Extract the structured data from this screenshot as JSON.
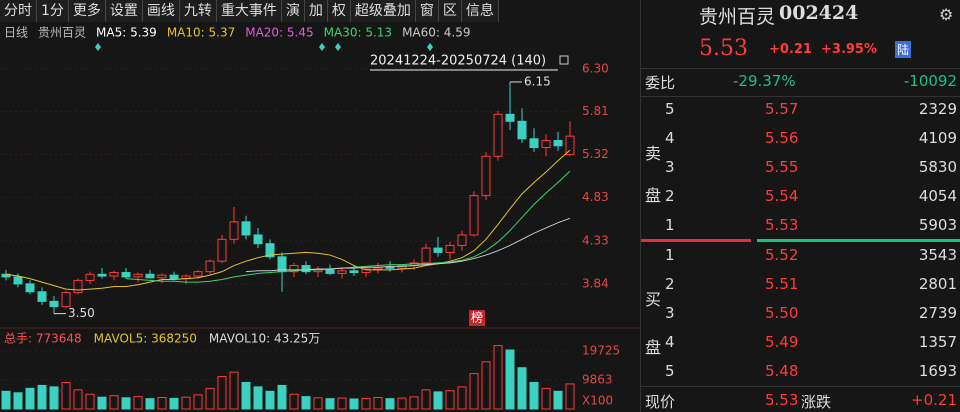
{
  "toolbar": [
    "分时",
    "1分",
    "更多",
    "设置",
    "画线",
    "九转",
    "重大事件",
    "演",
    "加",
    "权",
    "超级叠加",
    "窗",
    "区",
    "信息"
  ],
  "chart_data": {
    "type": "candlestick",
    "legend": [
      {
        "label": "日线",
        "color": "#bbbbbb"
      },
      {
        "label": "贵州百灵",
        "color": "#bbbbbb"
      },
      {
        "label": "MA5: 5.39",
        "color": "#ffffff"
      },
      {
        "label": "MA10: 5.37",
        "color": "#e6c229"
      },
      {
        "label": "MA20: 5.45",
        "color": "#e05fd0"
      },
      {
        "label": "MA30: 5.13",
        "color": "#3ad46a"
      },
      {
        "label": "MA60: 4.59",
        "color": "#c9c9c9"
      }
    ],
    "range_label": "20241224-20250724 (140)",
    "annotations": [
      {
        "text": "6.15",
        "index": 42
      },
      {
        "text": "3.50",
        "index": 4
      }
    ],
    "badge": "榜",
    "ylim": [
      3.45,
      6.63
    ],
    "yticks": [
      {
        "value": 6.3,
        "label": "6.30"
      },
      5.81,
      5.32,
      4.83,
      4.33,
      3.84
    ],
    "up_color": "#ff3b3b",
    "down_color": "#3ad1c0",
    "candles": [
      [
        3.95,
        4.0,
        3.88,
        3.92
      ],
      [
        3.92,
        3.96,
        3.8,
        3.84
      ],
      [
        3.84,
        3.88,
        3.72,
        3.75
      ],
      [
        3.75,
        3.8,
        3.6,
        3.64
      ],
      [
        3.64,
        3.7,
        3.5,
        3.58
      ],
      [
        3.58,
        3.76,
        3.56,
        3.74
      ],
      [
        3.74,
        3.9,
        3.72,
        3.88
      ],
      [
        3.88,
        3.98,
        3.84,
        3.95
      ],
      [
        3.95,
        4.02,
        3.9,
        3.93
      ],
      [
        3.93,
        3.99,
        3.88,
        3.97
      ],
      [
        3.97,
        4.02,
        3.9,
        3.92
      ],
      [
        3.92,
        3.97,
        3.86,
        3.95
      ],
      [
        3.95,
        4.0,
        3.9,
        3.91
      ],
      [
        3.91,
        3.96,
        3.85,
        3.94
      ],
      [
        3.94,
        3.98,
        3.88,
        3.9
      ],
      [
        3.9,
        3.95,
        3.84,
        3.93
      ],
      [
        3.93,
        4.0,
        3.9,
        3.98
      ],
      [
        3.98,
        4.12,
        3.95,
        4.1
      ],
      [
        4.1,
        4.4,
        4.08,
        4.35
      ],
      [
        4.35,
        4.72,
        4.3,
        4.55
      ],
      [
        4.55,
        4.62,
        4.35,
        4.4
      ],
      [
        4.4,
        4.48,
        4.25,
        4.3
      ],
      [
        4.3,
        4.35,
        4.12,
        4.15
      ],
      [
        4.15,
        4.2,
        3.75,
        3.98
      ],
      [
        3.98,
        4.08,
        3.92,
        4.05
      ],
      [
        4.05,
        4.1,
        3.95,
        3.98
      ],
      [
        3.98,
        4.04,
        3.92,
        4.0
      ],
      [
        4.0,
        4.06,
        3.94,
        3.96
      ],
      [
        3.96,
        4.02,
        3.9,
        3.99
      ],
      [
        3.99,
        4.05,
        3.93,
        3.97
      ],
      [
        3.97,
        4.03,
        3.92,
        4.01
      ],
      [
        4.01,
        4.08,
        3.96,
        4.03
      ],
      [
        4.03,
        4.1,
        3.98,
        4.02
      ],
      [
        4.02,
        4.06,
        3.97,
        4.05
      ],
      [
        4.05,
        4.12,
        4.0,
        4.08
      ],
      [
        4.08,
        4.3,
        4.05,
        4.25
      ],
      [
        4.25,
        4.38,
        4.15,
        4.2
      ],
      [
        4.2,
        4.32,
        4.12,
        4.28
      ],
      [
        4.28,
        4.45,
        4.22,
        4.4
      ],
      [
        4.4,
        4.9,
        4.38,
        4.85
      ],
      [
        4.85,
        5.35,
        4.8,
        5.3
      ],
      [
        5.3,
        5.82,
        5.25,
        5.78
      ],
      [
        5.78,
        6.15,
        5.6,
        5.7
      ],
      [
        5.7,
        5.85,
        5.45,
        5.5
      ],
      [
        5.5,
        5.62,
        5.35,
        5.4
      ],
      [
        5.4,
        5.55,
        5.3,
        5.48
      ],
      [
        5.48,
        5.58,
        5.36,
        5.42
      ],
      [
        5.32,
        5.7,
        5.3,
        5.53
      ]
    ],
    "series": [
      {
        "name": "MA10",
        "color": "#e6c229",
        "values": [
          3.95,
          3.93,
          3.9,
          3.86,
          3.82,
          3.78,
          3.77,
          3.78,
          3.79,
          3.81,
          3.81,
          3.83,
          3.86,
          3.89,
          3.89,
          3.9,
          3.91,
          3.94,
          3.98,
          4.05,
          4.1,
          4.14,
          4.17,
          4.18,
          4.19,
          4.2,
          4.19,
          4.17,
          4.12,
          4.05,
          4.0,
          4.0,
          4.0,
          4.01,
          4.02,
          4.05,
          4.07,
          4.1,
          4.14,
          4.22,
          4.35,
          4.52,
          4.7,
          4.87,
          5.0,
          5.12,
          5.25,
          5.37
        ]
      },
      {
        "name": "MA30",
        "color": "#3ad46a",
        "values": [
          null,
          null,
          null,
          null,
          null,
          null,
          null,
          null,
          null,
          null,
          3.9,
          3.89,
          3.88,
          3.87,
          3.87,
          3.86,
          3.86,
          3.87,
          3.89,
          3.92,
          3.94,
          3.96,
          3.97,
          3.98,
          3.99,
          4.0,
          4.0,
          4.01,
          4.02,
          4.03,
          4.04,
          4.05,
          4.06,
          4.06,
          4.07,
          4.07,
          4.08,
          4.09,
          4.11,
          4.15,
          4.22,
          4.32,
          4.45,
          4.6,
          4.75,
          4.88,
          5.0,
          5.13
        ]
      },
      {
        "name": "MA60",
        "color": "#c9c9c9",
        "values": [
          null,
          null,
          null,
          null,
          null,
          null,
          null,
          null,
          null,
          null,
          null,
          null,
          null,
          null,
          null,
          null,
          null,
          null,
          null,
          null,
          3.98,
          3.99,
          3.99,
          4.0,
          4.0,
          4.0,
          4.01,
          4.01,
          4.02,
          4.02,
          4.03,
          4.03,
          4.04,
          4.04,
          4.05,
          4.06,
          4.07,
          4.08,
          4.1,
          4.13,
          4.17,
          4.22,
          4.28,
          4.35,
          4.42,
          4.48,
          4.54,
          4.59
        ]
      }
    ],
    "volume_legend": [
      {
        "label": "总手: 773648",
        "color": "#ff5050"
      },
      {
        "label": "MAVOL5: 368250",
        "color": "#e6c229"
      },
      {
        "label": "MAVOL10: 43.25万",
        "color": "#dddddd"
      }
    ],
    "volume": [
      6000,
      5500,
      7000,
      8000,
      7500,
      9000,
      6500,
      5000,
      4000,
      4500,
      3800,
      4200,
      3500,
      3900,
      3600,
      4000,
      4800,
      7000,
      11000,
      12500,
      9000,
      7500,
      6000,
      8000,
      5000,
      4200,
      3800,
      3500,
      3700,
      3400,
      3600,
      3900,
      3500,
      3700,
      4100,
      6500,
      5800,
      6200,
      7500,
      12000,
      16000,
      21500,
      20000,
      14000,
      9000,
      7000,
      6000,
      8500
    ],
    "vol_ylim": [
      0,
      23400
    ],
    "vol_yticks": [
      19725,
      9863
    ],
    "volume_unit": "X100"
  },
  "quote": {
    "name": "贵州百灵",
    "code": "002424",
    "price": "5.53",
    "change": "+0.21",
    "change_pct": "+3.95%",
    "badge": "陆",
    "ratio_label": "委比",
    "ratio": "-29.37%",
    "diff": "-10092",
    "sell_label": [
      "卖",
      "盘"
    ],
    "buy_label": [
      "买",
      "盘"
    ],
    "asks": [
      [
        "5",
        "5.57",
        "2329"
      ],
      [
        "4",
        "5.56",
        "4109"
      ],
      [
        "3",
        "5.55",
        "5830"
      ],
      [
        "2",
        "5.54",
        "4054"
      ],
      [
        "1",
        "5.53",
        "5903"
      ]
    ],
    "bids": [
      [
        "1",
        "5.52",
        "3543"
      ],
      [
        "2",
        "5.51",
        "2801"
      ],
      [
        "3",
        "5.50",
        "2739"
      ],
      [
        "4",
        "5.49",
        "1357"
      ],
      [
        "5",
        "5.48",
        "1693"
      ]
    ],
    "footer": {
      "now_label": "现价",
      "now": "5.53",
      "chg_label": "涨跌",
      "chg": "+0.21"
    }
  }
}
